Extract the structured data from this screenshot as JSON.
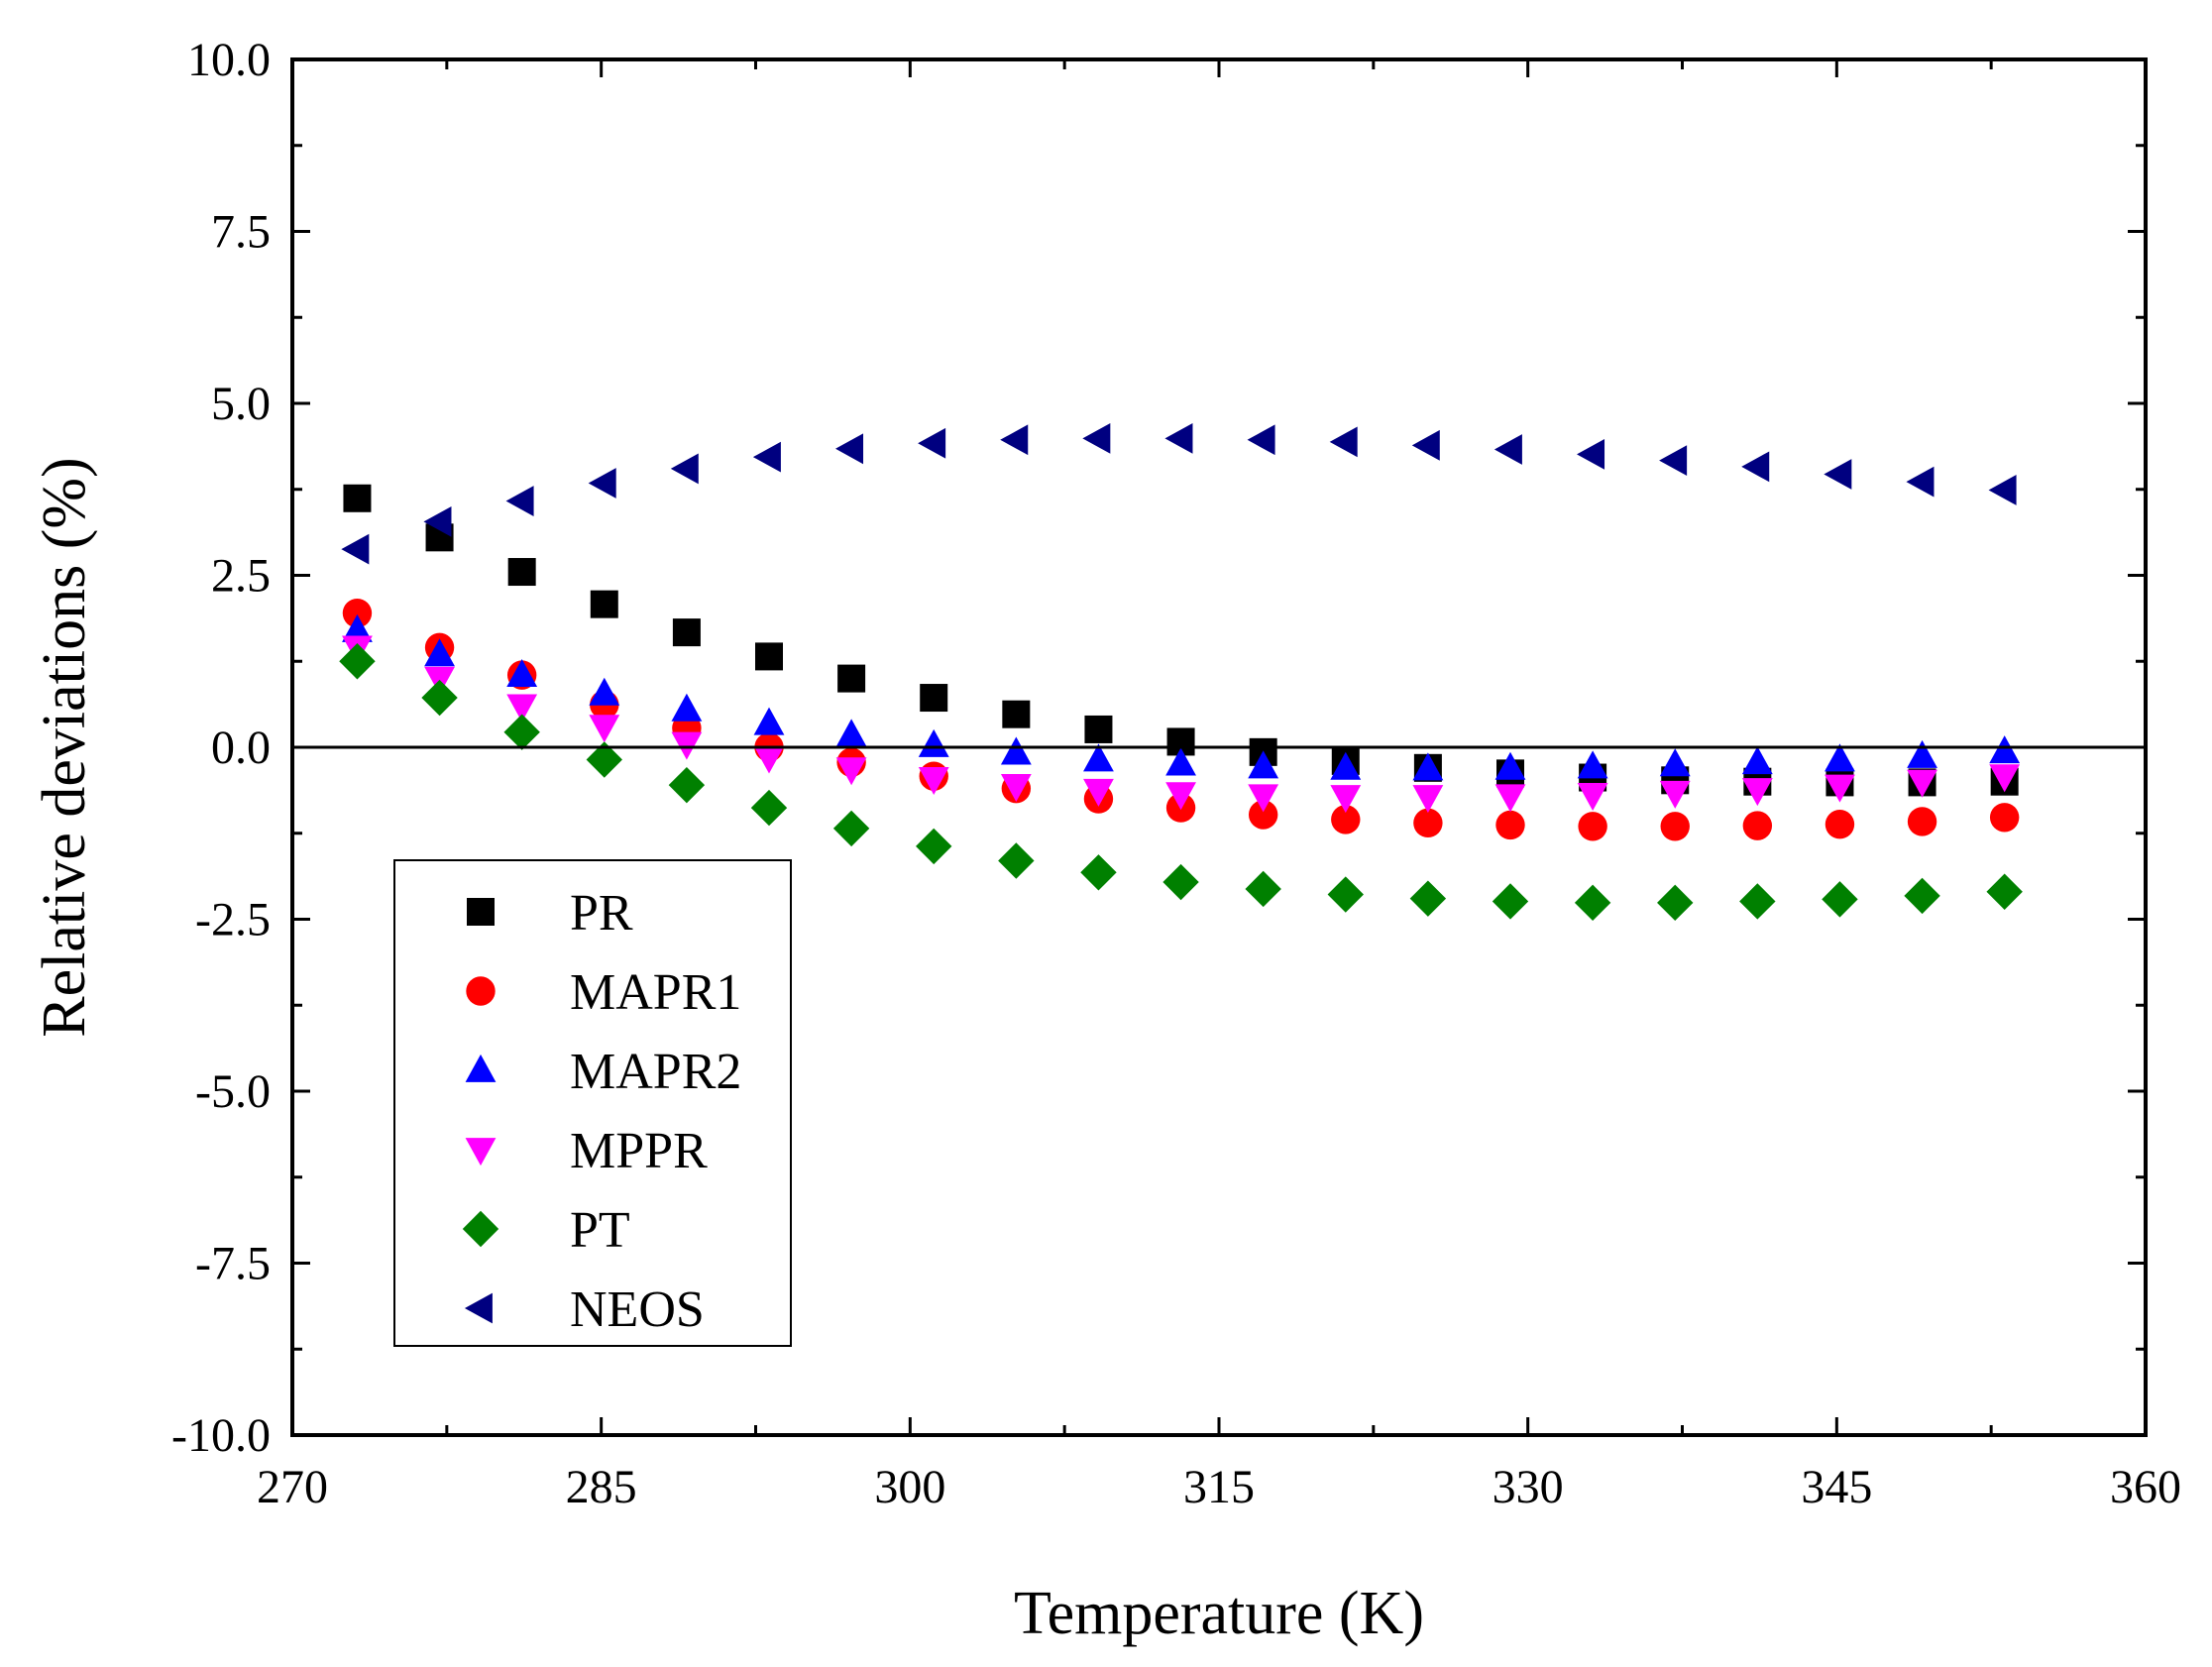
{
  "chart_data": {
    "type": "scatter",
    "title": "",
    "xlabel": "Temperature (K)",
    "ylabel": "Relative deviations (%)",
    "xlim": [
      270,
      360
    ],
    "ylim": [
      -10,
      10
    ],
    "x_ticks": [
      270,
      285,
      300,
      315,
      330,
      345,
      360
    ],
    "x_tick_labels": [
      "270",
      "285",
      "300",
      "315",
      "330",
      "345",
      "360"
    ],
    "y_ticks": [
      -10,
      -7.5,
      -5,
      -2.5,
      0,
      2.5,
      5,
      7.5,
      10
    ],
    "y_tick_labels": [
      "-10.0",
      "-7.5",
      "-5.0",
      "-2.5",
      "0.0",
      "2.5",
      "5.0",
      "7.5",
      "10.0"
    ],
    "grid": false,
    "legend_position": "bottom-left",
    "reference_line_y": 0,
    "x": [
      273.15,
      277.15,
      281.15,
      285.15,
      289.15,
      293.15,
      297.15,
      301.15,
      305.15,
      309.15,
      313.15,
      317.15,
      321.15,
      325.15,
      329.15,
      333.15,
      337.15,
      341.15,
      345.15,
      349.15,
      353.15
    ],
    "series": [
      {
        "name": "PR",
        "marker": "square",
        "color": "#000000",
        "values": [
          3.62,
          3.05,
          2.55,
          2.08,
          1.67,
          1.32,
          1.0,
          0.72,
          0.48,
          0.26,
          0.08,
          -0.07,
          -0.2,
          -0.3,
          -0.38,
          -0.44,
          -0.48,
          -0.5,
          -0.51,
          -0.51,
          -0.5
        ]
      },
      {
        "name": "MAPR1",
        "marker": "circle",
        "color": "#ff0000",
        "values": [
          1.95,
          1.45,
          1.05,
          0.62,
          0.28,
          0.0,
          -0.22,
          -0.42,
          -0.6,
          -0.75,
          -0.88,
          -0.98,
          -1.05,
          -1.1,
          -1.13,
          -1.15,
          -1.15,
          -1.14,
          -1.12,
          -1.08,
          -1.02
        ]
      },
      {
        "name": "MAPR2",
        "marker": "triangle-up",
        "color": "#0000ff",
        "values": [
          1.7,
          1.35,
          1.05,
          0.78,
          0.55,
          0.35,
          0.18,
          0.03,
          -0.08,
          -0.18,
          -0.24,
          -0.28,
          -0.3,
          -0.31,
          -0.3,
          -0.28,
          -0.25,
          -0.22,
          -0.18,
          -0.13,
          -0.06
        ]
      },
      {
        "name": "MPPR",
        "marker": "triangle-down",
        "color": "#ff00ff",
        "values": [
          1.45,
          1.0,
          0.6,
          0.3,
          0.05,
          -0.15,
          -0.32,
          -0.46,
          -0.56,
          -0.63,
          -0.68,
          -0.71,
          -0.72,
          -0.72,
          -0.71,
          -0.69,
          -0.66,
          -0.62,
          -0.57,
          -0.5,
          -0.42
        ]
      },
      {
        "name": "PT",
        "marker": "diamond",
        "color": "#008000",
        "values": [
          1.25,
          0.72,
          0.22,
          -0.18,
          -0.55,
          -0.88,
          -1.18,
          -1.44,
          -1.65,
          -1.82,
          -1.96,
          -2.06,
          -2.14,
          -2.2,
          -2.24,
          -2.26,
          -2.26,
          -2.24,
          -2.21,
          -2.16,
          -2.1
        ]
      },
      {
        "name": "NEOS",
        "marker": "triangle-left",
        "color": "#000080",
        "values": [
          2.88,
          3.28,
          3.58,
          3.84,
          4.05,
          4.22,
          4.34,
          4.42,
          4.47,
          4.49,
          4.49,
          4.47,
          4.44,
          4.39,
          4.33,
          4.26,
          4.17,
          4.08,
          3.97,
          3.86,
          3.74
        ]
      }
    ]
  }
}
